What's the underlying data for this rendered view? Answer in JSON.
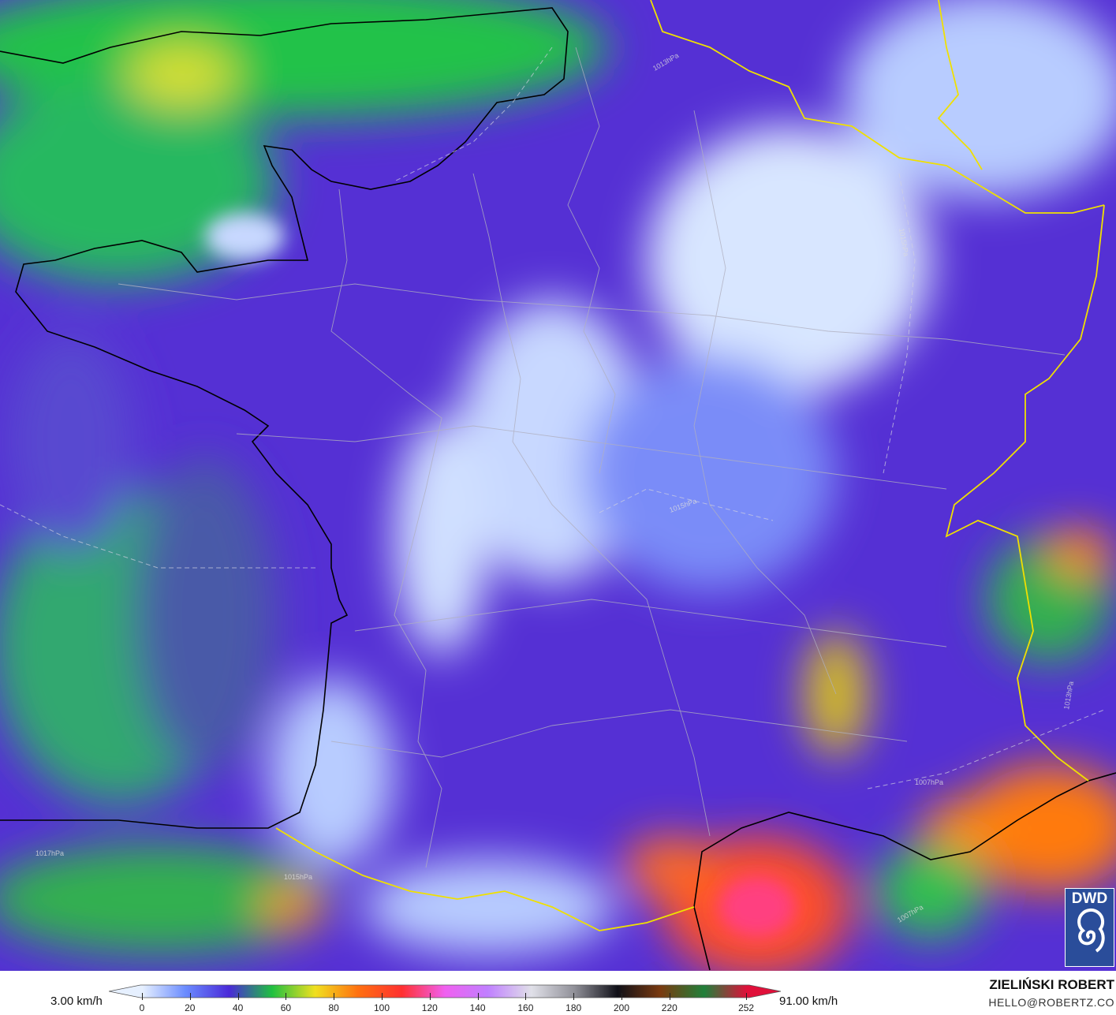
{
  "map": {
    "isobar_labels": [
      "1013hPa",
      "1015hPa",
      "1015hPa",
      "1017hPa",
      "1015hPa",
      "1007hPa",
      "1007hPa",
      "1013hPa"
    ],
    "colors": {
      "base": "#5a2fd6",
      "green": "#1fc24a",
      "white": "#e8f0ff",
      "blue": "#5a6cf0",
      "red": "#ff3b2a",
      "orange": "#ff7a10",
      "border_country": "#f0e000",
      "coast": "#000000",
      "region": "#aaaaaa"
    }
  },
  "logo": {
    "text": "DWD"
  },
  "legend": {
    "min_label": "3.00 km/h",
    "max_label": "91.00 km/h",
    "ticks": [
      "0",
      "20",
      "40",
      "60",
      "80",
      "100",
      "120",
      "140",
      "160",
      "180",
      "200",
      "220",
      "252"
    ],
    "colors": [
      "#e6f0ff",
      "#6b8cff",
      "#4a2ad8",
      "#20c040",
      "#f0e020",
      "#ff7010",
      "#ff3030",
      "#f060f0",
      "#c080ff",
      "#e0e0e8",
      "#909098",
      "#101018",
      "#7a3a10",
      "#20803a",
      "#e0103a"
    ]
  },
  "credit": {
    "author": "ZIELIŃSKI ROBERT",
    "email": "HELLO@ROBERTZ.CO"
  }
}
